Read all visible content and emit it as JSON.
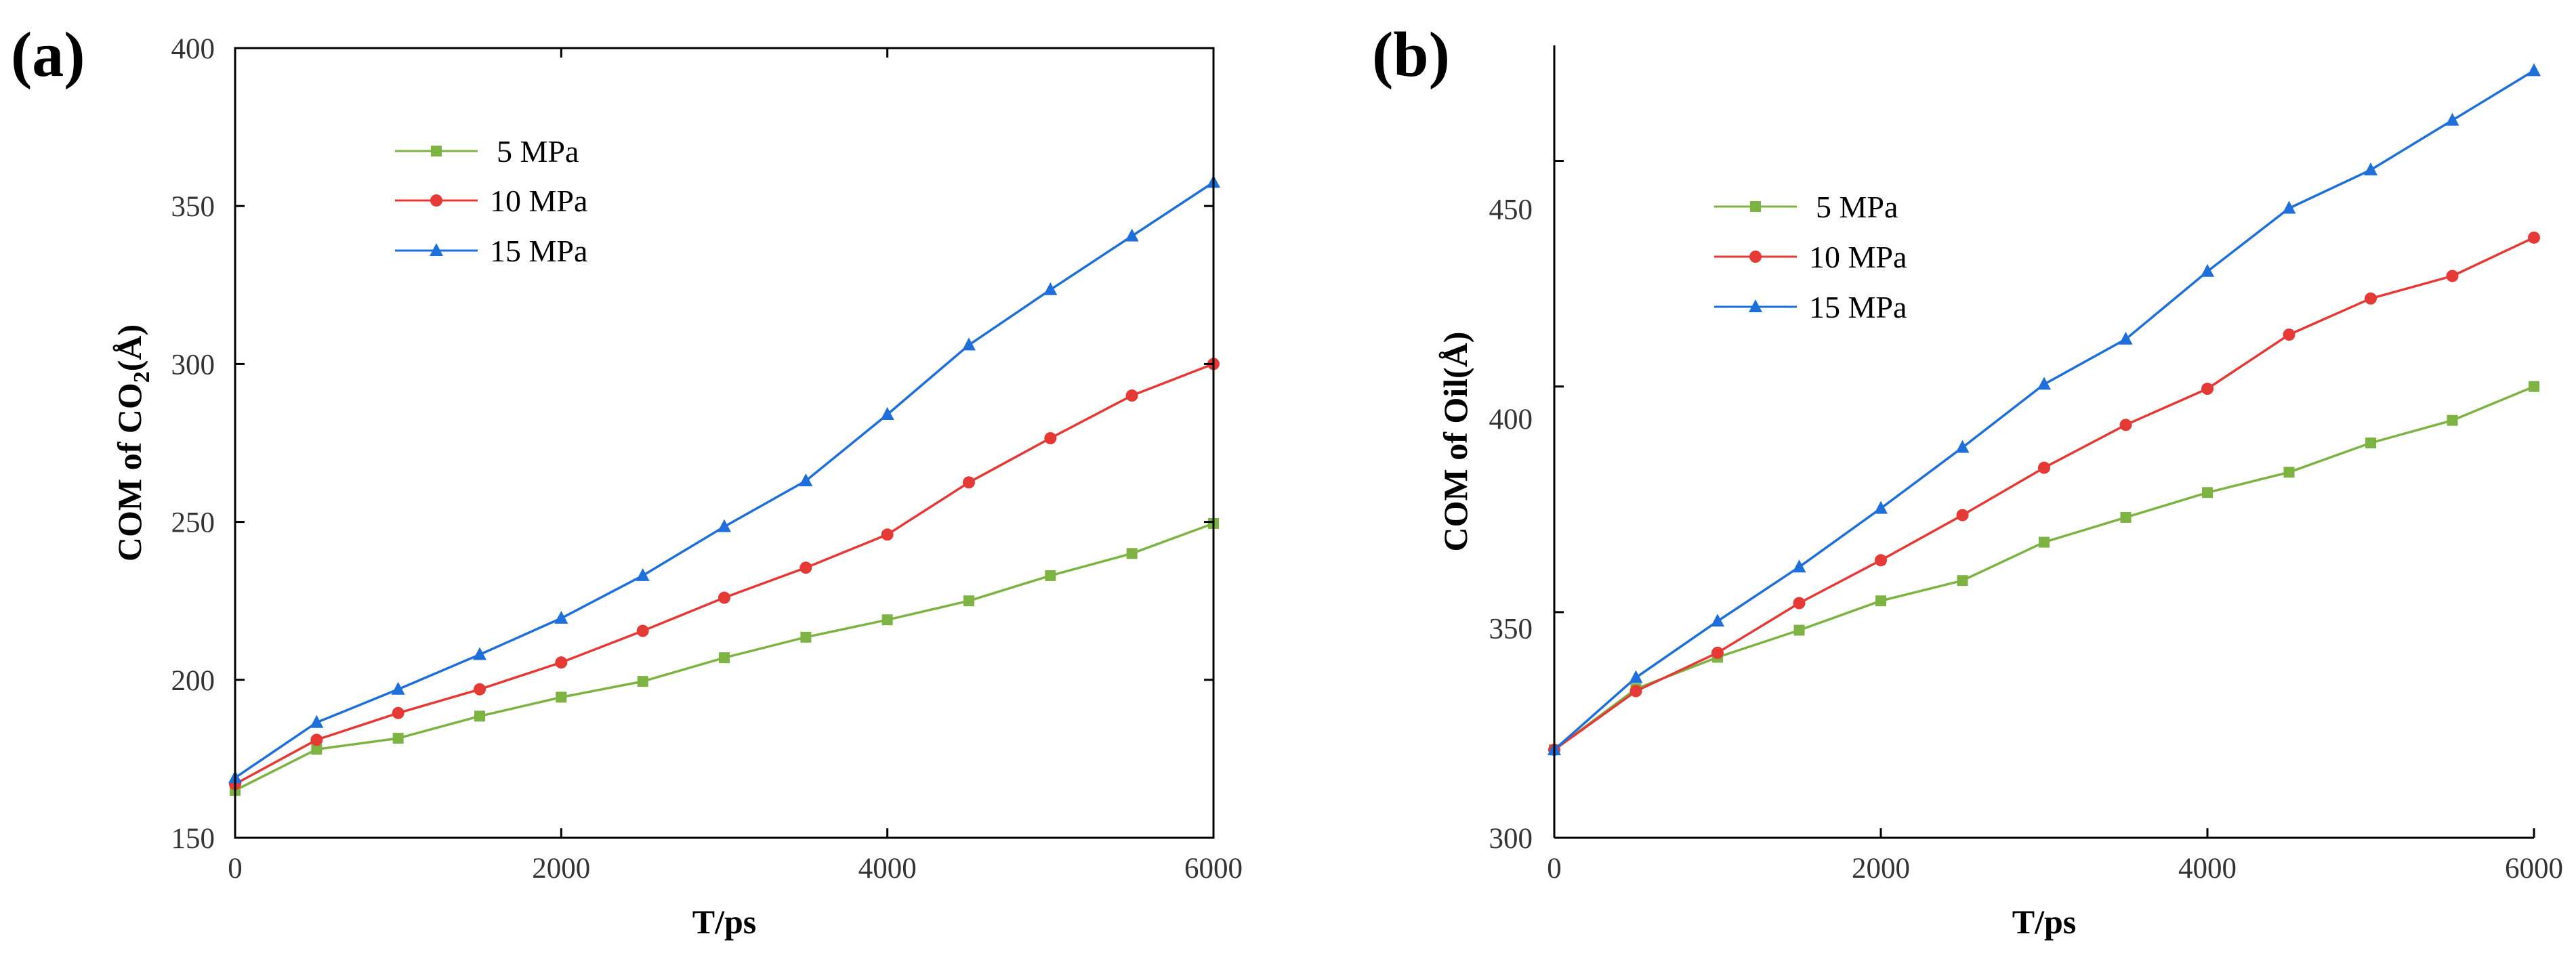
{
  "chart_data": [
    {
      "type": "line",
      "panel_label": "(a)",
      "title": "",
      "xlabel": "T/ps",
      "ylabel_parts": [
        "COM of CO",
        "2",
        "(Å)"
      ],
      "xlim": [
        0,
        6000
      ],
      "ylim": [
        150,
        400
      ],
      "xticks": [
        0,
        2000,
        4000,
        6000
      ],
      "yticks": [
        150,
        200,
        250,
        300,
        350,
        400
      ],
      "xtick_labels": [
        "0",
        "2000",
        "4000",
        "6000"
      ],
      "ytick_labels": [
        "150",
        "200",
        "250",
        "300",
        "350",
        "400"
      ],
      "grid": false,
      "legend_position": "upper-left",
      "x": [
        0,
        500,
        1000,
        1500,
        2000,
        2500,
        3000,
        3500,
        4000,
        4500,
        5000,
        5500,
        6000
      ],
      "series": [
        {
          "name": "5 MPa",
          "color": "#7cb342",
          "marker": "square",
          "values": [
            165,
            178,
            181.5,
            188.5,
            194.5,
            199.5,
            207,
            213.5,
            219,
            225,
            233,
            240,
            249.5
          ]
        },
        {
          "name": "10 MPa",
          "color": "#e53935",
          "marker": "circle",
          "values": [
            167,
            181,
            189.5,
            197,
            205.5,
            215.5,
            226,
            235.5,
            246,
            262.5,
            276.5,
            290,
            300
          ]
        },
        {
          "name": "15 MPa",
          "color": "#1e6fd9",
          "marker": "triangle",
          "values": [
            169,
            186.5,
            197,
            208,
            219.5,
            233,
            248.5,
            263,
            284,
            306,
            323.5,
            340.5,
            357.5
          ]
        }
      ]
    },
    {
      "type": "line",
      "panel_label": "(b)",
      "title": "",
      "xlabel": "T/ps",
      "ylabel_parts": [
        "COM of Oil(Å)"
      ],
      "xlim": [
        0,
        6000
      ],
      "ylim": [
        300,
        475
      ],
      "xticks": [
        0,
        2000,
        4000,
        6000
      ],
      "yticks": [
        300,
        350,
        400,
        450
      ],
      "xtick_labels": [
        "0",
        "2000",
        "4000",
        "6000"
      ],
      "ytick_labels": [
        "300",
        "350",
        "400",
        "450"
      ],
      "grid": false,
      "legend_position": "upper-left",
      "x": [
        0,
        500,
        1000,
        1500,
        2000,
        2500,
        3000,
        3500,
        4000,
        4500,
        5000,
        5500,
        6000
      ],
      "series": [
        {
          "name": "5 MPa",
          "color": "#7cb342",
          "marker": "square",
          "values": [
            319.5,
            333,
            340,
            346,
            352.5,
            357,
            365.5,
            371,
            376.5,
            381,
            387.5,
            392.5,
            400
          ]
        },
        {
          "name": "10 MPa",
          "color": "#e53935",
          "marker": "circle",
          "values": [
            319.5,
            332.5,
            341,
            352,
            361.5,
            371.5,
            382,
            391.5,
            399.5,
            411.5,
            419.5,
            424.5,
            433
          ]
        },
        {
          "name": "15 MPa",
          "color": "#1e6fd9",
          "marker": "triangle",
          "values": [
            319.5,
            335.5,
            348,
            360,
            373,
            386.5,
            400.5,
            410.5,
            425.5,
            439.5,
            448,
            459,
            470
          ]
        }
      ]
    }
  ]
}
